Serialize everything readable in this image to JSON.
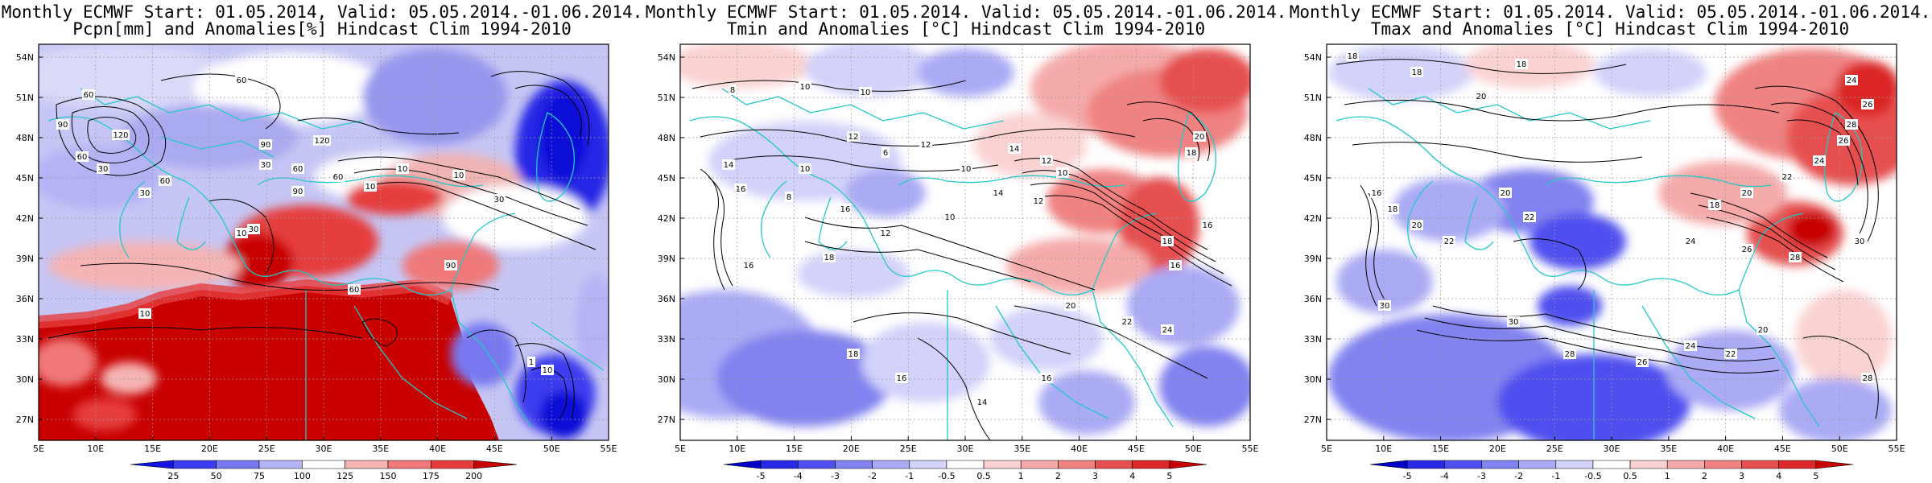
{
  "panels": [
    {
      "title_line1": "Monthly ECMWF Start: 01.05.2014, Valid: 05.05.2014.-01.06.2014.",
      "title_line2": "Pcpn[mm] and Anomalies[%] Hindcast Clim 1994-2010",
      "colorbar_labels": [
        "25",
        "50",
        "75",
        "100",
        "125",
        "150",
        "175",
        "200"
      ],
      "colorbar_colors": [
        "#1414e6",
        "#3c3cf0",
        "#7878f0",
        "#b4b4f5",
        "#ffffff",
        "#f5b4b4",
        "#f07878",
        "#e63c3c",
        "#c80000"
      ],
      "contour_labels": [
        "60",
        "90",
        "120",
        "60",
        "30",
        "60",
        "30",
        "60",
        "90",
        "120",
        "60",
        "30",
        "90",
        "60",
        "30",
        "10",
        "10",
        "10",
        "10",
        "30",
        "90",
        "60",
        "10",
        "1",
        "10"
      ]
    },
    {
      "title_line1": "Monthly ECMWF Start: 01.05.2014. Valid: 05.05.2014.-01.06.2014.",
      "title_line2": "Tmin and Anomalies [°C] Hindcast Clim 1994-2010",
      "colorbar_labels": [
        "-5",
        "-4",
        "-3",
        "-2",
        "-1",
        "-0.5",
        "0.5",
        "1",
        "2",
        "3",
        "4",
        "5"
      ],
      "colorbar_colors": [
        "#0000c8",
        "#2828e6",
        "#5050f0",
        "#8282f0",
        "#aaaaf5",
        "#d2d2fa",
        "#ffffff",
        "#fad2d2",
        "#f5aaaa",
        "#f08282",
        "#e65050",
        "#dc2828",
        "#c80000"
      ],
      "contour_labels": [
        "8",
        "10",
        "10",
        "14",
        "16",
        "12",
        "10",
        "8",
        "6",
        "12",
        "10",
        "14",
        "12",
        "10",
        "16",
        "18",
        "16",
        "12",
        "10",
        "14",
        "12",
        "16",
        "18",
        "20",
        "22",
        "24",
        "18",
        "16",
        "14",
        "16",
        "20",
        "18",
        "16"
      ]
    },
    {
      "title_line1": "Monthly ECMWF Start: 01.05.2014. Valid: 05.05.2014.-01.06.2014.",
      "title_line2": "Tmax and Anomalies [°C] Hindcast Clim 1994-2010",
      "colorbar_labels": [
        "-5",
        "-4",
        "-3",
        "-2",
        "-1",
        "-0.5",
        "0.5",
        "1",
        "2",
        "3",
        "4",
        "5"
      ],
      "colorbar_colors": [
        "#0000c8",
        "#2828e6",
        "#5050f0",
        "#8282f0",
        "#aaaaf5",
        "#d2d2fa",
        "#ffffff",
        "#fad2d2",
        "#f5aaaa",
        "#f08282",
        "#e65050",
        "#dc2828",
        "#c80000"
      ],
      "contour_labels": [
        "18",
        "18",
        "20",
        "18",
        "24",
        "26",
        "28",
        "26",
        "24",
        "22",
        "20",
        "18",
        "20",
        "22",
        "24",
        "26",
        "28",
        "30",
        "16",
        "18",
        "20",
        "22",
        "30",
        "28",
        "26",
        "24",
        "22",
        "20",
        "30",
        "28"
      ]
    }
  ],
  "axes": {
    "lat_labels": [
      "54N",
      "51N",
      "48N",
      "45N",
      "42N",
      "39N",
      "36N",
      "33N",
      "30N",
      "27N"
    ],
    "lon_labels": [
      "5E",
      "10E",
      "15E",
      "20E",
      "25E",
      "30E",
      "35E",
      "40E",
      "45E",
      "50E",
      "55E"
    ]
  },
  "colors": {
    "coast": "#22c8c8",
    "contour": "#000000",
    "frame": "#000000"
  }
}
